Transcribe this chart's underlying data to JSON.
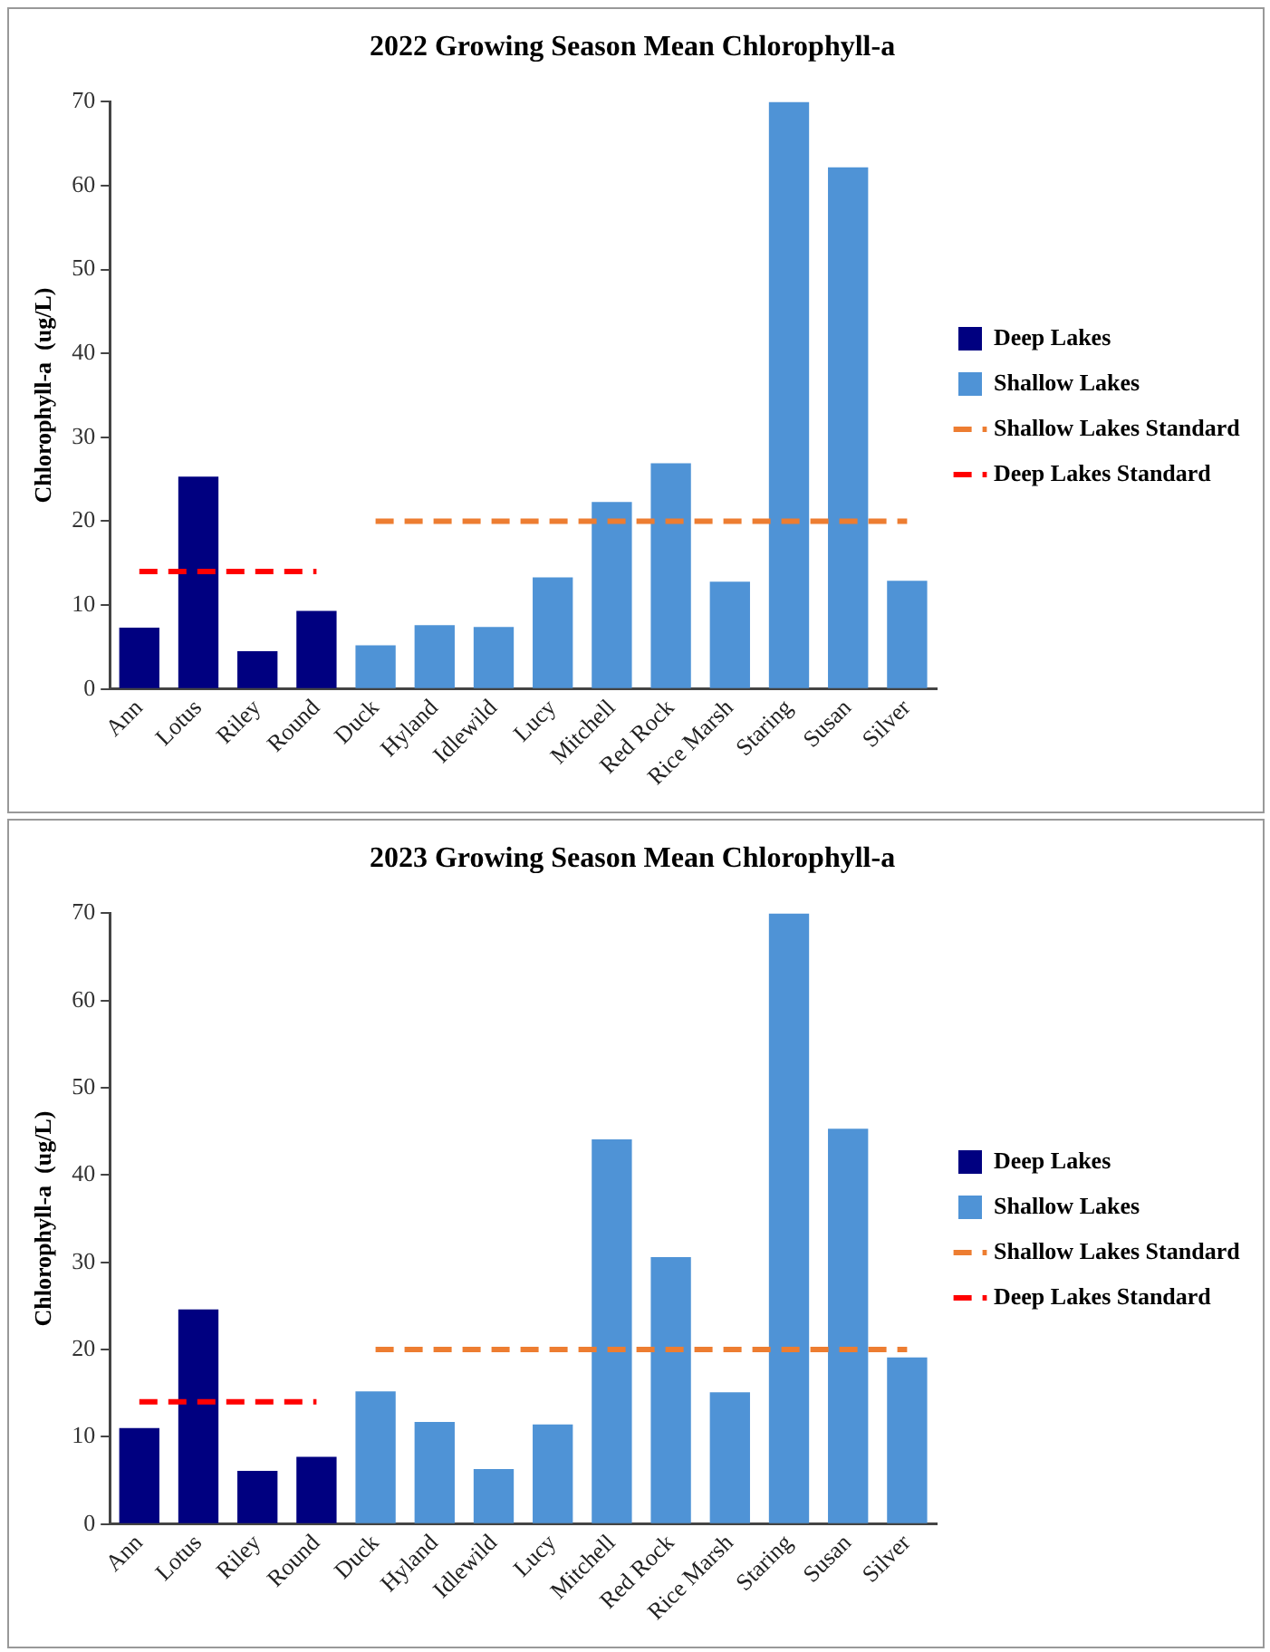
{
  "chart_data": [
    {
      "type": "bar",
      "title": "2022 Growing Season Mean Chlorophyll-a",
      "ylabel": "Chlorophyll-a  (ug/L)",
      "categories": [
        "Ann",
        "Lotus",
        "Riley",
        "Round",
        "Duck",
        "Hyland",
        "Idlewild",
        "Lucy",
        "Mitchell",
        "Red Rock",
        "Rice Marsh",
        "Staring",
        "Susan",
        "Silver"
      ],
      "ylim": [
        0,
        70
      ],
      "yticks": [
        0,
        10,
        20,
        30,
        40,
        50,
        60,
        70
      ],
      "legend": "right",
      "series": [
        {
          "name": "Deep Lakes",
          "color": "#000080",
          "values": [
            7.3,
            25.3,
            4.5,
            9.3,
            null,
            null,
            null,
            null,
            null,
            null,
            null,
            null,
            null,
            null
          ]
        },
        {
          "name": "Shallow Lakes",
          "color": "#4f93d6",
          "values": [
            null,
            null,
            null,
            null,
            5.2,
            7.6,
            7.4,
            13.3,
            22.3,
            26.9,
            12.8,
            70,
            62.2,
            12.9
          ]
        },
        {
          "name": "Shallow Lakes Standard",
          "type": "line",
          "color": "#ed7d31",
          "line_style": "dashed",
          "marker": "none",
          "values": [
            null,
            null,
            null,
            null,
            20,
            20,
            20,
            20,
            20,
            20,
            20,
            20,
            20,
            20
          ]
        },
        {
          "name": "Deep Lakes Standard",
          "type": "line",
          "color": "#ff0000",
          "line_style": "dashed",
          "marker": "none",
          "values": [
            14,
            14,
            14,
            14,
            null,
            null,
            null,
            null,
            null,
            null,
            null,
            null,
            null,
            null
          ]
        }
      ]
    },
    {
      "type": "bar",
      "title": "2023 Growing Season Mean Chlorophyll-a",
      "ylabel": "Chlorophyll-a  (ug/L)",
      "categories": [
        "Ann",
        "Lotus",
        "Riley",
        "Round",
        "Duck",
        "Hyland",
        "Idlewild",
        "Lucy",
        "Mitchell",
        "Red Rock",
        "Rice Marsh",
        "Staring",
        "Susan",
        "Silver"
      ],
      "ylim": [
        0,
        70
      ],
      "yticks": [
        0,
        10,
        20,
        30,
        40,
        50,
        60,
        70
      ],
      "legend": "right",
      "series": [
        {
          "name": "Deep Lakes",
          "color": "#000080",
          "values": [
            11.0,
            24.6,
            6.1,
            7.7,
            null,
            null,
            null,
            null,
            null,
            null,
            null,
            null,
            null,
            null
          ]
        },
        {
          "name": "Shallow Lakes",
          "color": "#4f93d6",
          "values": [
            null,
            null,
            null,
            null,
            15.2,
            11.7,
            6.3,
            11.4,
            44.1,
            30.6,
            15.1,
            70,
            45.3,
            19.1
          ]
        },
        {
          "name": "Shallow Lakes Standard",
          "type": "line",
          "color": "#ed7d31",
          "line_style": "dashed",
          "marker": "none",
          "values": [
            null,
            null,
            null,
            null,
            20,
            20,
            20,
            20,
            20,
            20,
            20,
            20,
            20,
            20
          ]
        },
        {
          "name": "Deep Lakes Standard",
          "type": "line",
          "color": "#ff0000",
          "line_style": "dashed",
          "marker": "none",
          "values": [
            14,
            14,
            14,
            14,
            null,
            null,
            null,
            null,
            null,
            null,
            null,
            null,
            null,
            null
          ]
        }
      ]
    }
  ]
}
